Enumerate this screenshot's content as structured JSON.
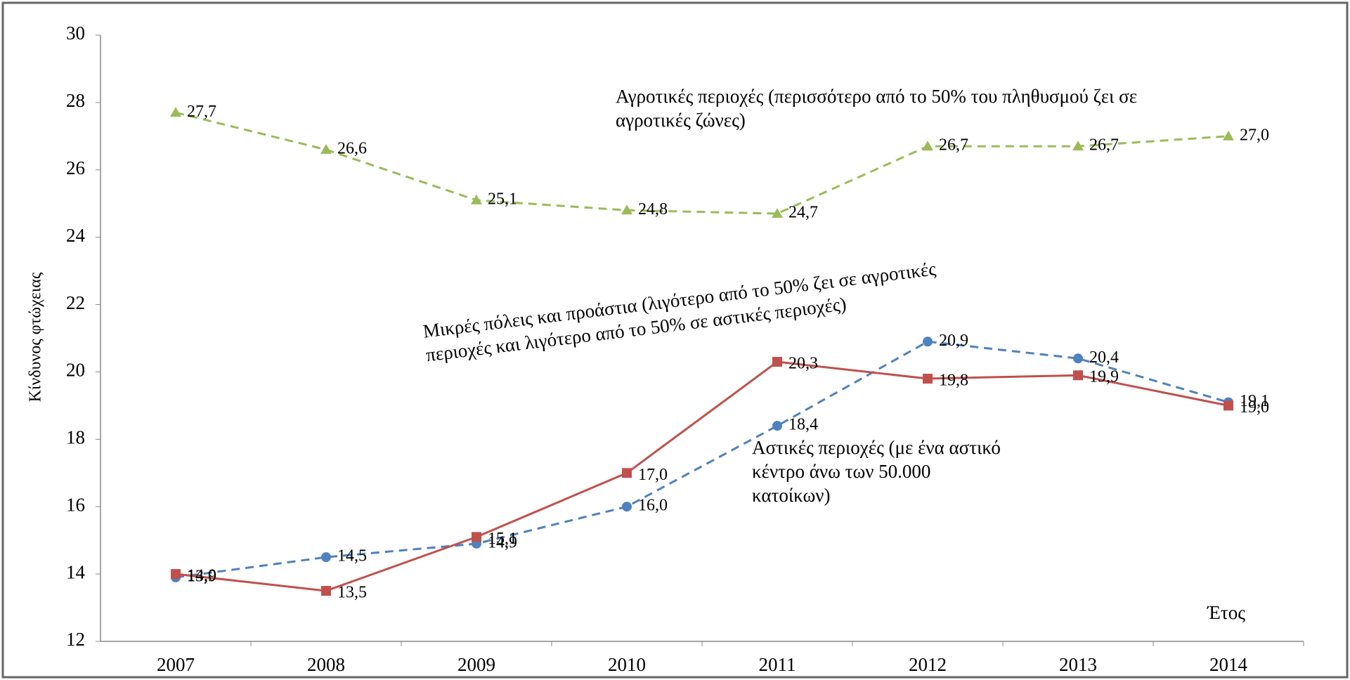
{
  "chart_data": {
    "type": "line",
    "y_label": "Κίνδυνος φτώχειας",
    "x_label": "Έτος",
    "categories": [
      "2007",
      "2008",
      "2009",
      "2010",
      "2011",
      "2012",
      "2013",
      "2014"
    ],
    "ylim": [
      12,
      30
    ],
    "yticks": [
      12,
      14,
      16,
      18,
      20,
      22,
      24,
      26,
      28,
      30
    ],
    "series": [
      {
        "name": "Αγροτικές περιοχές (περισσότερο από το 50% του πληθυσμού ζει σε αγροτικές ζώνες)",
        "color": "#9bbb59",
        "dash": true,
        "marker": "triangle",
        "values": [
          27.7,
          26.6,
          25.1,
          24.8,
          24.7,
          26.7,
          26.7,
          27.0
        ],
        "value_labels": [
          "27,7",
          "26,6",
          "25,1",
          "24,8",
          "24,7",
          "26,7",
          "26,7",
          "27,0"
        ]
      },
      {
        "name": "Αστικές περιοχές (με ένα αστικό κέντρο άνω των 50.000 κατοίκων)",
        "color": "#4f81bd",
        "dash": true,
        "marker": "circle",
        "values": [
          13.9,
          14.5,
          14.9,
          16.0,
          18.4,
          20.9,
          20.4,
          19.1
        ],
        "value_labels": [
          "13,9",
          "14,5",
          "14,9",
          "16,0",
          "18,4",
          "20,9",
          "20,4",
          "19,1"
        ]
      },
      {
        "name": "Μικρές πόλεις και προάστια (λιγότερο από το 50% ζει σε αγροτικές περιοχές και λιγότερο από το 50% σε αστικές περιοχές)",
        "color": "#c0504d",
        "dash": false,
        "marker": "square",
        "values": [
          14.0,
          13.5,
          15.1,
          17.0,
          20.3,
          19.8,
          19.9,
          19.0
        ],
        "value_labels": [
          "14,0",
          "13,5",
          "15,1",
          "17,0",
          "20,3",
          "19,8",
          "19,9",
          "19,0"
        ]
      }
    ]
  }
}
